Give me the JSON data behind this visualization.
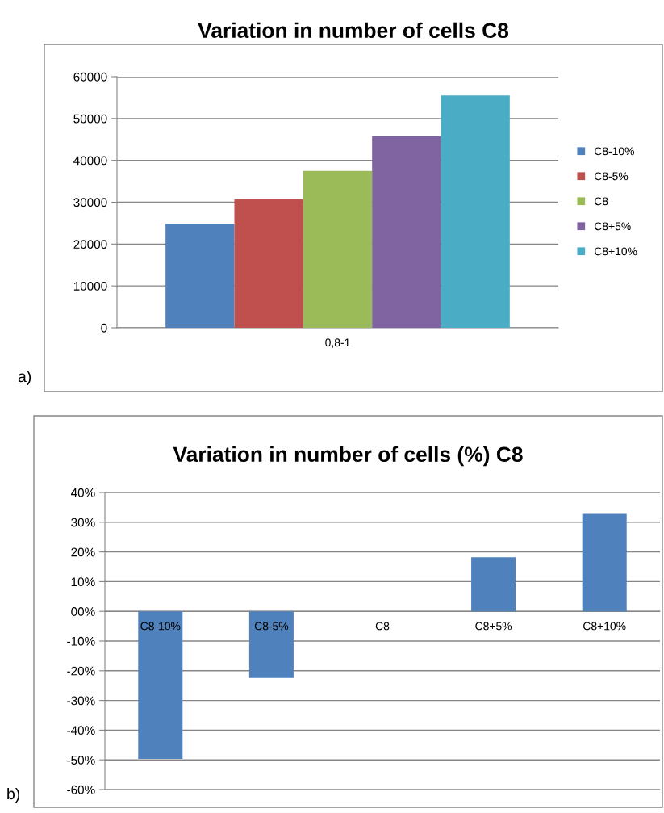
{
  "chart_data": [
    {
      "type": "bar",
      "title": "Variation in number of cells C8",
      "categories": [
        "0,8-1"
      ],
      "series": [
        {
          "name": "C8-10%",
          "color": "#4f81bd",
          "values": [
            24900
          ]
        },
        {
          "name": "C8-5%",
          "color": "#c0504d",
          "values": [
            30700
          ]
        },
        {
          "name": "C8",
          "color": "#9bbb59",
          "values": [
            37500
          ]
        },
        {
          "name": "C8+5%",
          "color": "#8064a2",
          "values": [
            45800
          ]
        },
        {
          "name": "C8+10%",
          "color": "#4bacc6",
          "values": [
            55500
          ]
        }
      ],
      "ylim": [
        0,
        60000
      ],
      "yticks": [
        0,
        10000,
        20000,
        30000,
        40000,
        50000,
        60000
      ],
      "grid": "y",
      "legend": "right",
      "annotations": [
        "a)"
      ]
    },
    {
      "type": "bar",
      "title": "Variation in number of cells (%) C8",
      "categories": [
        "C8-10%",
        "C8-5%",
        "C8",
        "C8+5%",
        "C8+10%"
      ],
      "series": [
        {
          "color": "#4f81bd",
          "values": [
            -49.7,
            -22.4,
            0,
            18.2,
            32.8
          ]
        }
      ],
      "ylim": [
        -60,
        40
      ],
      "yticks": [
        {
          "value": -60,
          "label": "-60%"
        },
        {
          "value": -50,
          "label": "-50%"
        },
        {
          "value": -40,
          "label": "-40%"
        },
        {
          "value": -30,
          "label": "-30%"
        },
        {
          "value": -20,
          "label": "-20%"
        },
        {
          "value": -10,
          "label": "-10%"
        },
        {
          "value": 0,
          "label": "00%"
        },
        {
          "value": 10,
          "label": "10%"
        },
        {
          "value": 20,
          "label": "20%"
        },
        {
          "value": 30,
          "label": "30%"
        },
        {
          "value": 40,
          "label": "40%"
        }
      ],
      "grid": "y",
      "annotations": [
        "b)"
      ]
    }
  ]
}
